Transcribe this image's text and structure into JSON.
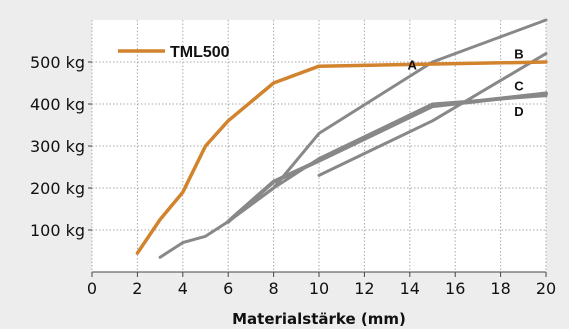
{
  "chart_data": {
    "type": "line",
    "xlabel": "Materialstärke (mm)",
    "xlim": [
      0,
      20
    ],
    "ylim": [
      0,
      600
    ],
    "x_ticks": [
      "0",
      "2",
      "4",
      "6",
      "8",
      "10",
      "12",
      "14",
      "16",
      "18",
      "20"
    ],
    "y_ticks": [
      "100 kg",
      "200 kg",
      "300 kg",
      "400 kg",
      "500 kg"
    ],
    "y_tick_values": [
      100,
      200,
      300,
      400,
      500
    ],
    "grid": true,
    "legend": {
      "position": "top-left",
      "entries": [
        "TML500"
      ]
    },
    "colors": {
      "TML500": "#d2832e",
      "others": "#888888",
      "grid": "#aaaaaa",
      "background": "#ffffff"
    },
    "series": [
      {
        "name": "TML500",
        "color": "#d2832e",
        "width": 3.5,
        "x": [
          2,
          3,
          4,
          5,
          6,
          8,
          10,
          20
        ],
        "y": [
          45,
          125,
          190,
          300,
          360,
          450,
          490,
          500
        ]
      },
      {
        "name": "A",
        "color": "#888888",
        "width": 3,
        "x": [
          3,
          4,
          5,
          6,
          8,
          10,
          15,
          20
        ],
        "y": [
          35,
          70,
          85,
          120,
          200,
          330,
          500,
          600
        ]
      },
      {
        "name": "B",
        "color": "#888888",
        "width": 3,
        "x": [
          10,
          15,
          20
        ],
        "y": [
          230,
          360,
          520
        ]
      },
      {
        "name": "C",
        "color": "#888888",
        "width": 3,
        "x": [
          6,
          8,
          10,
          15,
          20
        ],
        "y": [
          120,
          200,
          270,
          400,
          420
        ]
      },
      {
        "name": "D",
        "color": "#888888",
        "width": 4,
        "x": [
          6,
          8,
          10,
          15,
          20
        ],
        "y": [
          120,
          215,
          265,
          395,
          425
        ]
      }
    ],
    "annotations": [
      {
        "text": "A",
        "x": 13.9,
        "y": 482
      },
      {
        "text": "B",
        "x": 18.6,
        "y": 508
      },
      {
        "text": "C",
        "x": 18.6,
        "y": 432
      },
      {
        "text": "D",
        "x": 18.6,
        "y": 372
      }
    ]
  }
}
